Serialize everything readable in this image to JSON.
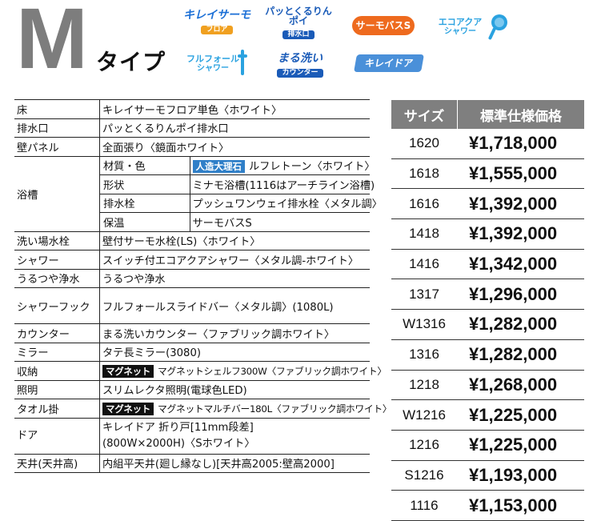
{
  "header": {
    "big_letter": "M",
    "type_label": "タイプ",
    "badges": [
      {
        "main": "キレイサーモ",
        "sub": "フロア",
        "color": "#1b6fd6",
        "sub_bg": "#f0a020"
      },
      {
        "main": "パッとくるりんポイ",
        "sub": "排水口",
        "color": "#1a5bb8",
        "sub_bg": "#1a5bb8"
      },
      {
        "main": "サーモバスS",
        "sub": "",
        "color": "#ffffff",
        "sub_bg": "#ee6a1e"
      },
      {
        "main": "エコアクア",
        "sub": "シャワー",
        "color": "#2aa2e0",
        "sub_bg": ""
      },
      {
        "main": "フルフォール",
        "sub": "シャワー",
        "color": "#2aa2e0",
        "sub_bg": ""
      },
      {
        "main": "まる洗い",
        "sub": "カウンター",
        "color": "#1a5bb8",
        "sub_bg": "#1a5bb8"
      },
      {
        "main": "キレイドア",
        "sub": "",
        "color": "#ffffff",
        "sub_bg": "#4a90d9"
      }
    ]
  },
  "spec": {
    "floor": {
      "label": "床",
      "value": "キレイサーモフロア単色〈ホワイト〉"
    },
    "drain": {
      "label": "排水口",
      "value": "パッとくるりんポイ排水口"
    },
    "wall": {
      "label": "壁パネル",
      "value": "全面張り〈鏡面ホワイト〉"
    },
    "tub": {
      "label": "浴槽",
      "material": {
        "label": "材質・色",
        "tag": "人造大理石",
        "value": "ルフレトーン〈ホワイト〉"
      },
      "shape": {
        "label": "形状",
        "value": "ミナモ浴槽(1116はアーチライン浴槽)"
      },
      "plug": {
        "label": "排水栓",
        "value": "プッシュワンウェイ排水栓〈メタル調〉"
      },
      "keep": {
        "label": "保温",
        "value": "サーモバスS"
      }
    },
    "faucet": {
      "label": "洗い場水栓",
      "value": "壁付サーモ水栓(LS)〈ホワイト〉"
    },
    "shower": {
      "label": "シャワー",
      "value": "スイッチ付エコアクアシャワー〈メタル調-ホワイト〉"
    },
    "water": {
      "label": "うるつや浄水",
      "value": "うるつや浄水"
    },
    "hook": {
      "label": "シャワーフック",
      "value": "フルフォールスライドバー〈メタル調〉(1080L)"
    },
    "counter": {
      "label": "カウンター",
      "value": "まる洗いカウンター〈ファブリック調ホワイト〉"
    },
    "mirror": {
      "label": "ミラー",
      "value": "タテ長ミラー(3080)"
    },
    "storage": {
      "label": "収納",
      "tag": "マグネット",
      "value": "マグネットシェルフ300W〈ファブリック調ホワイト〉"
    },
    "light": {
      "label": "照明",
      "value": "スリムレクタ照明(電球色LED)"
    },
    "towel": {
      "label": "タオル掛",
      "tag": "マグネット",
      "value": "マグネットマルチバー180L〈ファブリック調ホワイト〉"
    },
    "door": {
      "label": "ドア",
      "value1": "キレイドア 折り戸[11mm段差]",
      "value2": "(800W×2000H)〈Sホワイト〉"
    },
    "ceiling": {
      "label": "天井(天井高)",
      "value": "内組平天井(廻し縁なし)[天井高2005:壁高2000]"
    }
  },
  "price": {
    "col_size": "サイズ",
    "col_price": "標準仕様価格",
    "rows": [
      {
        "size": "1620",
        "price": "¥1,718,000"
      },
      {
        "size": "1618",
        "price": "¥1,555,000"
      },
      {
        "size": "1616",
        "price": "¥1,392,000"
      },
      {
        "size": "1418",
        "price": "¥1,392,000"
      },
      {
        "size": "1416",
        "price": "¥1,342,000"
      },
      {
        "size": "1317",
        "price": "¥1,296,000"
      },
      {
        "size": "W1316",
        "price": "¥1,282,000"
      },
      {
        "size": "1316",
        "price": "¥1,282,000"
      },
      {
        "size": "1218",
        "price": "¥1,268,000"
      },
      {
        "size": "W1216",
        "price": "¥1,225,000"
      },
      {
        "size": "1216",
        "price": "¥1,225,000"
      },
      {
        "size": "S1216",
        "price": "¥1,193,000"
      },
      {
        "size": "1116",
        "price": "¥1,153,000"
      }
    ]
  }
}
